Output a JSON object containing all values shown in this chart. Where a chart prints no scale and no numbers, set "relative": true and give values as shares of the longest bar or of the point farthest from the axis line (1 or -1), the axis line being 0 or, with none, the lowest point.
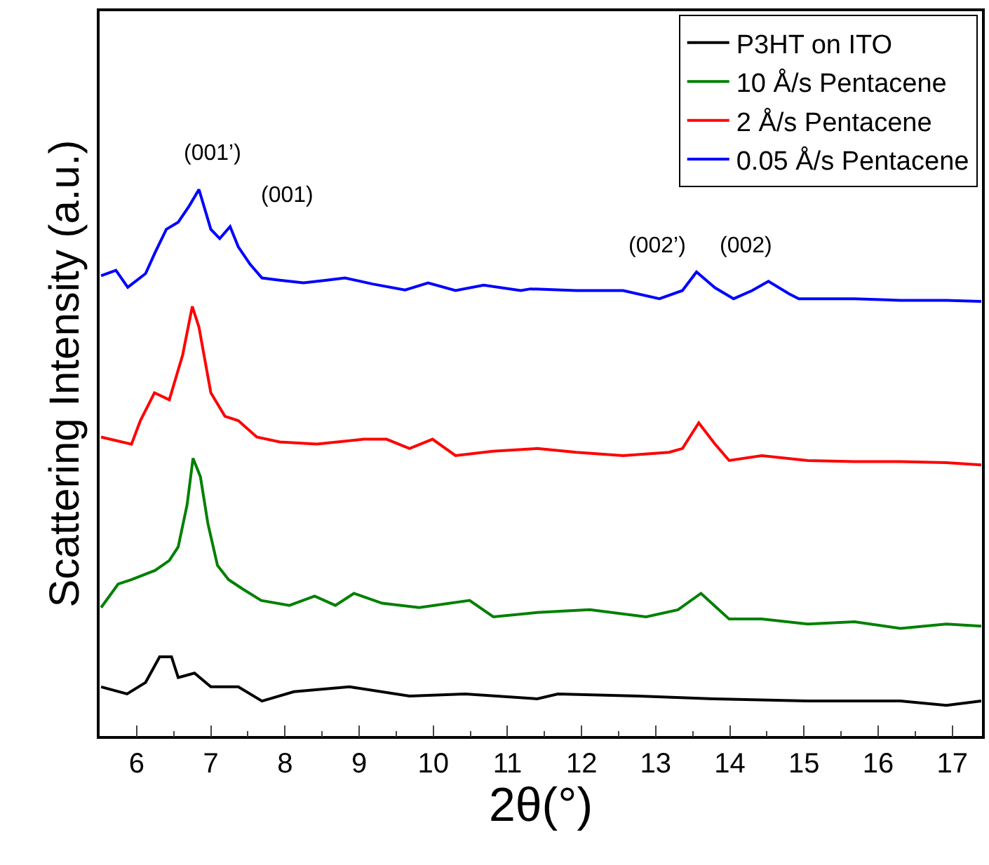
{
  "chart_data": {
    "type": "line",
    "relative": true,
    "xlabel": "2θ(°)",
    "ylabel": "Scattering Intensity (a.u.)",
    "xlim": [
      5.5,
      17.4
    ],
    "xticks": [
      6,
      7,
      8,
      9,
      10,
      11,
      12,
      13,
      14,
      15,
      16,
      17
    ],
    "legend": "top right",
    "marker": "none",
    "line_style": "solid",
    "series": [
      {
        "name": "P3HT on ITO",
        "color": "#000000",
        "x": [
          5.52,
          5.87,
          6.12,
          6.31,
          6.47,
          6.56,
          6.78,
          7.0,
          7.37,
          7.69,
          8.12,
          8.87,
          9.68,
          10.43,
          11.4,
          11.68,
          12.77,
          13.8,
          15.05,
          16.3,
          16.92,
          17.39
        ],
        "values": [
          0.09,
          0.077,
          0.098,
          0.145,
          0.145,
          0.107,
          0.115,
          0.09,
          0.09,
          0.064,
          0.081,
          0.09,
          0.073,
          0.077,
          0.068,
          0.077,
          0.073,
          0.068,
          0.064,
          0.064,
          0.056,
          0.064
        ]
      },
      {
        "name": "10 Å/s Pentacene",
        "color": "#008000",
        "x": [
          5.52,
          5.75,
          5.93,
          6.25,
          6.44,
          6.56,
          6.68,
          6.76,
          6.86,
          6.96,
          7.09,
          7.24,
          7.43,
          7.68,
          8.06,
          8.4,
          8.68,
          8.93,
          9.31,
          9.81,
          10.49,
          10.81,
          11.4,
          12.11,
          12.87,
          13.3,
          13.61,
          13.99,
          14.43,
          15.05,
          15.68,
          16.3,
          16.92,
          17.39
        ],
        "values": [
          0.235,
          0.278,
          0.286,
          0.303,
          0.321,
          0.346,
          0.423,
          0.508,
          0.474,
          0.389,
          0.312,
          0.286,
          0.269,
          0.248,
          0.239,
          0.256,
          0.239,
          0.261,
          0.243,
          0.235,
          0.248,
          0.218,
          0.226,
          0.231,
          0.218,
          0.231,
          0.261,
          0.214,
          0.214,
          0.205,
          0.209,
          0.197,
          0.205,
          0.201
        ]
      },
      {
        "name": "2 Å/s Pentacene",
        "color": "#ff0000",
        "x": [
          5.52,
          5.93,
          6.05,
          6.24,
          6.44,
          6.62,
          6.75,
          6.84,
          7.0,
          7.19,
          7.37,
          7.62,
          7.93,
          8.43,
          9.06,
          9.37,
          9.68,
          9.99,
          10.3,
          10.8,
          11.4,
          11.93,
          12.56,
          13.18,
          13.36,
          13.58,
          13.8,
          13.99,
          14.43,
          15.05,
          15.68,
          16.3,
          16.92,
          17.39
        ],
        "values": [
          0.547,
          0.534,
          0.577,
          0.628,
          0.615,
          0.697,
          0.786,
          0.748,
          0.628,
          0.585,
          0.577,
          0.547,
          0.538,
          0.534,
          0.543,
          0.543,
          0.526,
          0.543,
          0.513,
          0.521,
          0.526,
          0.519,
          0.513,
          0.519,
          0.526,
          0.573,
          0.534,
          0.504,
          0.513,
          0.504,
          0.502,
          0.502,
          0.5,
          0.496
        ]
      },
      {
        "name": "0.05 Å/s Pentacene",
        "color": "#0000ff",
        "x": [
          5.52,
          5.72,
          5.88,
          6.12,
          6.25,
          6.4,
          6.56,
          6.71,
          6.84,
          7.0,
          7.12,
          7.26,
          7.37,
          7.53,
          7.69,
          7.93,
          8.25,
          8.56,
          8.81,
          9.18,
          9.62,
          9.93,
          10.3,
          10.68,
          11.18,
          11.31,
          11.93,
          12.56,
          13.05,
          13.36,
          13.55,
          13.8,
          14.05,
          14.3,
          14.52,
          14.8,
          14.93,
          15.68,
          16.3,
          16.92,
          17.39
        ],
        "values": [
          0.842,
          0.852,
          0.821,
          0.846,
          0.885,
          0.927,
          0.94,
          0.97,
          1.0,
          0.927,
          0.91,
          0.932,
          0.895,
          0.863,
          0.838,
          0.834,
          0.829,
          0.834,
          0.838,
          0.827,
          0.816,
          0.829,
          0.815,
          0.825,
          0.815,
          0.818,
          0.815,
          0.815,
          0.8,
          0.815,
          0.849,
          0.82,
          0.8,
          0.815,
          0.832,
          0.809,
          0.8,
          0.8,
          0.797,
          0.797,
          0.795
        ]
      }
    ],
    "annotations": [
      "(001’)",
      "(001)",
      "(002’)",
      "(002)"
    ]
  }
}
